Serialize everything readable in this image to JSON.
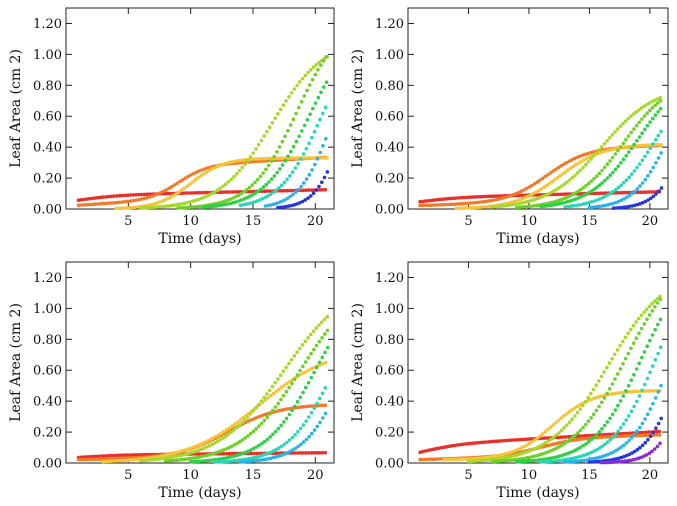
{
  "colors": {
    "frame": "#222222",
    "text": "#111111"
  },
  "chart_data": [
    {
      "type": "scatter",
      "title": "",
      "xlabel": "Time (days)",
      "ylabel": "Leaf Area (cm 2)",
      "xlim": [
        0,
        21.5
      ],
      "ylim": [
        0,
        1.3
      ],
      "xticks": [
        5,
        10,
        15,
        20
      ],
      "xtick_labels": [
        "5",
        "10",
        "15",
        "20"
      ],
      "yticks": [
        0,
        0.2,
        0.4,
        0.6,
        0.8,
        1.0,
        1.2
      ],
      "ytick_labels": [
        "0.00",
        "0.20",
        "0.40",
        "0.60",
        "0.80",
        "1.00",
        "1.20"
      ],
      "series": [
        {
          "color": "#e8302a",
          "start": 1,
          "end": 21,
          "mid": 1,
          "rate": 0.6,
          "plateau": 0.06,
          "base": 0.025,
          "linear": 0.0019
        },
        {
          "color": "#f07a2a",
          "start": 1,
          "end": 21,
          "mid": 9,
          "rate": 0.85,
          "plateau": 0.22,
          "base": 0.02,
          "linear": 0.0045
        },
        {
          "color": "#f5c43a",
          "start": 4,
          "end": 21,
          "mid": 10,
          "rate": 0.75,
          "plateau": 0.33,
          "base": 0,
          "linear": 0
        },
        {
          "color": "#a8d82a",
          "start": 6,
          "end": 21,
          "mid": 16.5,
          "rate": 0.48,
          "plateau": 1.1,
          "base": 0,
          "linear": 0
        },
        {
          "color": "#6ed028",
          "start": 9,
          "end": 21,
          "mid": 18.5,
          "rate": 0.55,
          "plateau": 1.25,
          "base": 0,
          "linear": 0
        },
        {
          "color": "#2ed048",
          "start": 11,
          "end": 21,
          "mid": 19.5,
          "rate": 0.55,
          "plateau": 1.2,
          "base": 0,
          "linear": 0
        },
        {
          "color": "#28d8b4",
          "start": 14,
          "end": 21,
          "mid": 20.5,
          "rate": 0.6,
          "plateau": 1.2,
          "base": 0,
          "linear": 0
        },
        {
          "color": "#28b4e8",
          "start": 16,
          "end": 21,
          "mid": 21.5,
          "rate": 0.75,
          "plateau": 1.2,
          "base": 0,
          "linear": 0
        },
        {
          "color": "#2838d8",
          "start": 17,
          "end": 21,
          "mid": 22.5,
          "rate": 0.9,
          "plateau": 1.2,
          "base": 0,
          "linear": 0
        }
      ]
    },
    {
      "type": "scatter",
      "title": "",
      "xlabel": "Time (days)",
      "ylabel": "Leaf Area (cm 2)",
      "xlim": [
        0,
        21.5
      ],
      "ylim": [
        0,
        1.3
      ],
      "xticks": [
        5,
        10,
        15,
        20
      ],
      "xtick_labels": [
        "5",
        "10",
        "15",
        "20"
      ],
      "yticks": [
        0,
        0.2,
        0.4,
        0.6,
        0.8,
        1.0,
        1.2
      ],
      "ytick_labels": [
        "0.00",
        "0.20",
        "0.40",
        "0.60",
        "0.80",
        "1.00",
        "1.20"
      ],
      "series": [
        {
          "color": "#e8302a",
          "start": 1,
          "end": 21,
          "mid": 1,
          "rate": 0.6,
          "plateau": 0.05,
          "base": 0.02,
          "linear": 0.002
        },
        {
          "color": "#f07a2a",
          "start": 1,
          "end": 21,
          "mid": 11.5,
          "rate": 0.6,
          "plateau": 0.35,
          "base": 0.02,
          "linear": 0.002
        },
        {
          "color": "#f5c43a",
          "start": 4,
          "end": 21,
          "mid": 12.5,
          "rate": 0.55,
          "plateau": 0.42,
          "base": 0,
          "linear": 0
        },
        {
          "color": "#a8d82a",
          "start": 7,
          "end": 21,
          "mid": 16,
          "rate": 0.45,
          "plateau": 0.8,
          "base": 0,
          "linear": 0
        },
        {
          "color": "#6ed028",
          "start": 9,
          "end": 21,
          "mid": 17.8,
          "rate": 0.5,
          "plateau": 0.85,
          "base": 0,
          "linear": 0
        },
        {
          "color": "#2ed048",
          "start": 11,
          "end": 21,
          "mid": 19,
          "rate": 0.5,
          "plateau": 0.9,
          "base": 0,
          "linear": 0
        },
        {
          "color": "#28d8b4",
          "start": 13,
          "end": 21,
          "mid": 20.5,
          "rate": 0.55,
          "plateau": 0.9,
          "base": 0,
          "linear": 0
        },
        {
          "color": "#28b4e8",
          "start": 15,
          "end": 21,
          "mid": 21.5,
          "rate": 0.7,
          "plateau": 0.9,
          "base": 0,
          "linear": 0
        },
        {
          "color": "#2838d8",
          "start": 17,
          "end": 21,
          "mid": 23,
          "rate": 0.85,
          "plateau": 0.9,
          "base": 0,
          "linear": 0
        }
      ]
    },
    {
      "type": "scatter",
      "title": "",
      "xlabel": "Time (days)",
      "ylabel": "Leaf Area (cm 2)",
      "xlim": [
        0,
        21.5
      ],
      "ylim": [
        0,
        1.3
      ],
      "xticks": [
        5,
        10,
        15,
        20
      ],
      "xtick_labels": [
        "5",
        "10",
        "15",
        "20"
      ],
      "yticks": [
        0,
        0.2,
        0.4,
        0.6,
        0.8,
        1.0,
        1.2
      ],
      "ytick_labels": [
        "0.00",
        "0.20",
        "0.40",
        "0.60",
        "0.80",
        "1.00",
        "1.20"
      ],
      "series": [
        {
          "color": "#e8302a",
          "start": 1,
          "end": 21,
          "mid": 1,
          "rate": 0.6,
          "plateau": 0.03,
          "base": 0.02,
          "linear": 0.0008
        },
        {
          "color": "#f07a2a",
          "start": 1,
          "end": 21,
          "mid": 13,
          "rate": 0.5,
          "plateau": 0.34,
          "base": 0.02,
          "linear": 0.001
        },
        {
          "color": "#f5c43a",
          "start": 3,
          "end": 21,
          "mid": 15.5,
          "rate": 0.35,
          "plateau": 0.75,
          "base": 0.02,
          "linear": 0
        },
        {
          "color": "#a8d82a",
          "start": 6,
          "end": 21,
          "mid": 17.5,
          "rate": 0.38,
          "plateau": 1.2,
          "base": 0,
          "linear": 0
        },
        {
          "color": "#6ed028",
          "start": 8,
          "end": 21,
          "mid": 18.8,
          "rate": 0.42,
          "plateau": 1.2,
          "base": 0,
          "linear": 0
        },
        {
          "color": "#2ed048",
          "start": 10,
          "end": 21,
          "mid": 20,
          "rate": 0.5,
          "plateau": 1.2,
          "base": 0,
          "linear": 0
        },
        {
          "color": "#28d8b4",
          "start": 12,
          "end": 21,
          "mid": 21.5,
          "rate": 0.55,
          "plateau": 1.2,
          "base": 0,
          "linear": 0
        },
        {
          "color": "#28b4e8",
          "start": 14,
          "end": 21,
          "mid": 22.5,
          "rate": 0.6,
          "plateau": 1.2,
          "base": 0,
          "linear": 0
        }
      ]
    },
    {
      "type": "scatter",
      "title": "",
      "xlabel": "Time (days)",
      "ylabel": "Leaf Area (cm 2)",
      "xlim": [
        0,
        21.5
      ],
      "ylim": [
        0,
        1.3
      ],
      "xticks": [
        5,
        10,
        15,
        20
      ],
      "xtick_labels": [
        "5",
        "10",
        "15",
        "20"
      ],
      "yticks": [
        0,
        0.2,
        0.4,
        0.6,
        0.8,
        1.0,
        1.2
      ],
      "ytick_labels": [
        "0.00",
        "0.20",
        "0.40",
        "0.60",
        "0.80",
        "1.00",
        "1.20"
      ],
      "series": [
        {
          "color": "#e8302a",
          "start": 1,
          "end": 21,
          "mid": 1,
          "rate": 0.6,
          "plateau": 0.09,
          "base": 0.02,
          "linear": 0.0045
        },
        {
          "color": "#f07a2a",
          "start": 1,
          "end": 21,
          "mid": 11,
          "rate": 0.6,
          "plateau": 0.12,
          "base": 0.02,
          "linear": 0.002
        },
        {
          "color": "#f5c43a",
          "start": 3,
          "end": 21,
          "mid": 12,
          "rate": 0.6,
          "plateau": 0.45,
          "base": 0.02,
          "linear": 0
        },
        {
          "color": "#a8d82a",
          "start": 5,
          "end": 21,
          "mid": 16.5,
          "rate": 0.42,
          "plateau": 1.25,
          "base": 0,
          "linear": 0
        },
        {
          "color": "#6ed028",
          "start": 7,
          "end": 21,
          "mid": 18,
          "rate": 0.45,
          "plateau": 1.35,
          "base": 0,
          "linear": 0
        },
        {
          "color": "#2ed048",
          "start": 9,
          "end": 21,
          "mid": 19.3,
          "rate": 0.5,
          "plateau": 1.35,
          "base": 0,
          "linear": 0
        },
        {
          "color": "#28d8b4",
          "start": 11,
          "end": 21,
          "mid": 20.5,
          "rate": 0.55,
          "plateau": 1.35,
          "base": 0,
          "linear": 0
        },
        {
          "color": "#28b4e8",
          "start": 13,
          "end": 21,
          "mid": 21.8,
          "rate": 0.6,
          "plateau": 1.35,
          "base": 0,
          "linear": 0
        },
        {
          "color": "#2838d8",
          "start": 15,
          "end": 21,
          "mid": 22.8,
          "rate": 0.7,
          "plateau": 1.35,
          "base": 0,
          "linear": 0
        },
        {
          "color": "#8a2ad8",
          "start": 16,
          "end": 21,
          "mid": 23.5,
          "rate": 0.85,
          "plateau": 1.35,
          "base": 0,
          "linear": 0
        }
      ]
    }
  ]
}
